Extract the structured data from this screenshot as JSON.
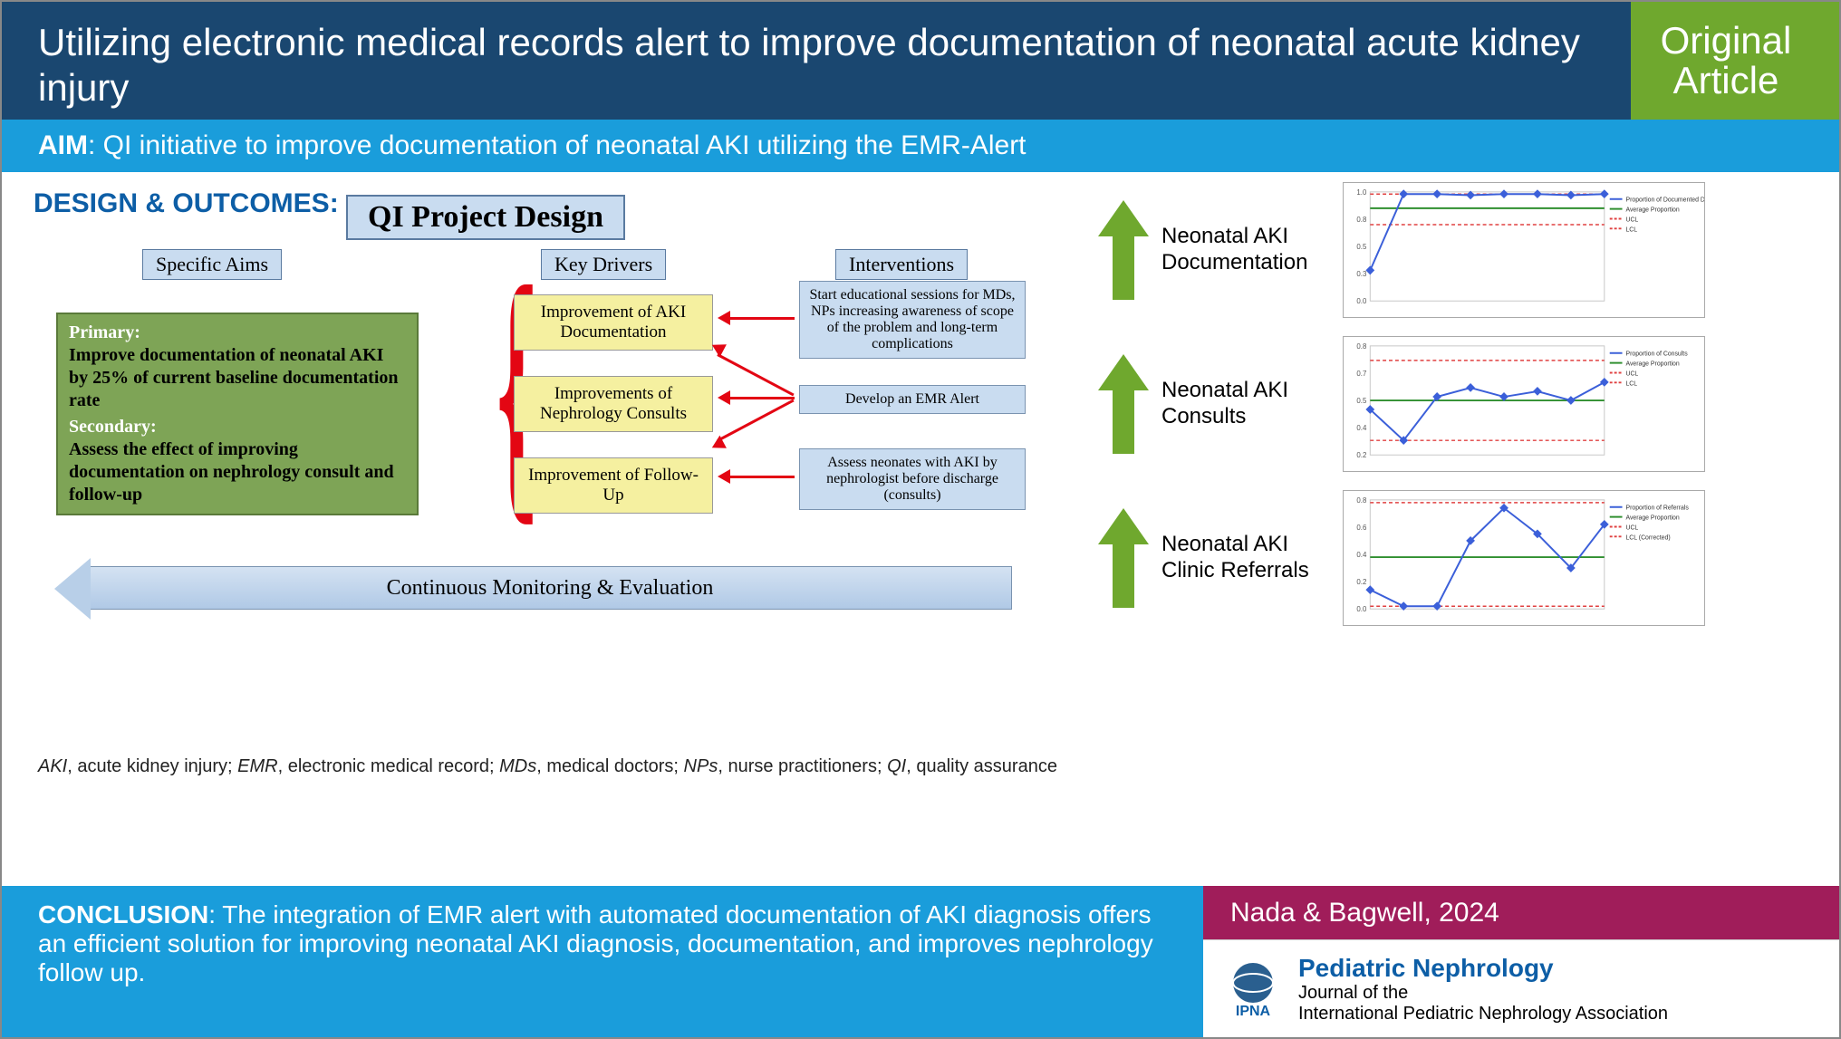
{
  "header": {
    "title": "Utilizing electronic medical records alert to improve documentation of  neonatal acute kidney injury",
    "badge_line1": "Original",
    "badge_line2": "Article"
  },
  "aim": {
    "label": "AIM",
    "text": ": QI initiative to improve documentation of neonatal AKI utilizing the EMR-Alert"
  },
  "design": {
    "heading": "DESIGN & OUTCOMES:",
    "qi_title": "QI Project Design",
    "col_specific": "Specific Aims",
    "col_drivers": "Key Drivers",
    "col_interventions": "Interventions",
    "aims_box": {
      "primary_label": "Primary:",
      "primary_body": "Improve documentation of neonatal AKI by 25% of current baseline documentation rate",
      "secondary_label": "Secondary:",
      "secondary_body": "Assess the effect of improving documentation on nephrology consult and follow-up"
    },
    "drivers": [
      "Improvement of AKI Documentation",
      "Improvements of Nephrology Consults",
      "Improvement of Follow-Up"
    ],
    "interventions": [
      "Start educational sessions for MDs, NPs increasing awareness of scope of the problem and long-term complications",
      "Develop an EMR Alert",
      "Assess neonates with AKI by nephrologist before discharge (consults)"
    ],
    "continuous": "Continuous Monitoring & Evaluation",
    "abbrev_html": "AKI, acute kidney injury; EMR, electronic medical record; MDs, medical doctors; NPs, nurse practitioners; QI, quality assurance"
  },
  "outcomes": [
    {
      "label": "Neonatal AKI Documentation"
    },
    {
      "label": "Neonatal AKI Consults"
    },
    {
      "label": "Neonatal AKI Clinic Referrals"
    }
  ],
  "charts": {
    "chart1": {
      "type": "line",
      "x": [
        0,
        1,
        2,
        3,
        4,
        5,
        6,
        7
      ],
      "y": [
        0.28,
        0.98,
        0.98,
        0.97,
        0.98,
        0.98,
        0.97,
        0.98
      ],
      "series_color": "#3b5fd9",
      "avg_line": 0.85,
      "avg_color": "#2f8f2f",
      "ucl": 0.98,
      "lcl": 0.7,
      "cl_color": "#e04040",
      "ylim": [
        0,
        1.0
      ],
      "xlim": [
        0,
        7
      ],
      "legend": [
        "Proportion of Documented Diagnosis",
        "Average Proportion",
        "UCL",
        "LCL"
      ],
      "background": "#ffffff",
      "grid_color": "#c8c8c8",
      "marker": "diamond",
      "marker_size": 5,
      "line_width": 2
    },
    "chart2": {
      "type": "line",
      "x": [
        0,
        1,
        2,
        3,
        4,
        5,
        6,
        7
      ],
      "y": [
        0.45,
        0.28,
        0.52,
        0.57,
        0.52,
        0.55,
        0.5,
        0.6
      ],
      "series_color": "#3b5fd9",
      "avg_line": 0.5,
      "avg_color": "#2f8f2f",
      "ucl": 0.72,
      "lcl": 0.28,
      "cl_color": "#e04040",
      "ylim": [
        0.2,
        0.8
      ],
      "xlim": [
        0,
        7
      ],
      "legend": [
        "Proportion of Consults",
        "Average Proportion",
        "UCL",
        "LCL"
      ],
      "background": "#ffffff",
      "grid_color": "#c8c8c8",
      "marker": "diamond",
      "marker_size": 5,
      "line_width": 2
    },
    "chart3": {
      "type": "line",
      "x": [
        0,
        1,
        2,
        3,
        4,
        5,
        6,
        7
      ],
      "y": [
        0.14,
        0.02,
        0.02,
        0.5,
        0.74,
        0.55,
        0.3,
        0.62
      ],
      "series_color": "#3b5fd9",
      "avg_line": 0.38,
      "avg_color": "#2f8f2f",
      "ucl": 0.78,
      "lcl": 0.02,
      "cl_color": "#e04040",
      "ylim": [
        0,
        0.8
      ],
      "xlim": [
        0,
        7
      ],
      "legend": [
        "Proportion of Referrals",
        "Average Proportion",
        "UCL",
        "LCL (Corrected)"
      ],
      "background": "#ffffff",
      "grid_color": "#c8c8c8",
      "marker": "diamond",
      "marker_size": 5,
      "line_width": 2
    }
  },
  "conclusion": {
    "label": "CONCLUSION",
    "text": ": The integration of EMR alert with automated documentation of AKI diagnosis offers an efficient solution for improving neonatal AKI diagnosis, documentation, and improves nephrology follow up."
  },
  "authors": "Nada & Bagwell, 2024",
  "journal": {
    "name": "Pediatric Nephrology",
    "sub1": "Journal of the",
    "sub2": "International Pediatric Nephrology Association",
    "logo_label": "IPNA"
  },
  "colors": {
    "dark_blue": "#1a4770",
    "bright_blue": "#1a9ddb",
    "green_badge": "#6fa82e",
    "magenta": "#a01d5a",
    "box_blue": "#c9dcf0",
    "box_yellow": "#f5f0a0",
    "box_green": "#7ea456",
    "red": "#e30613"
  }
}
